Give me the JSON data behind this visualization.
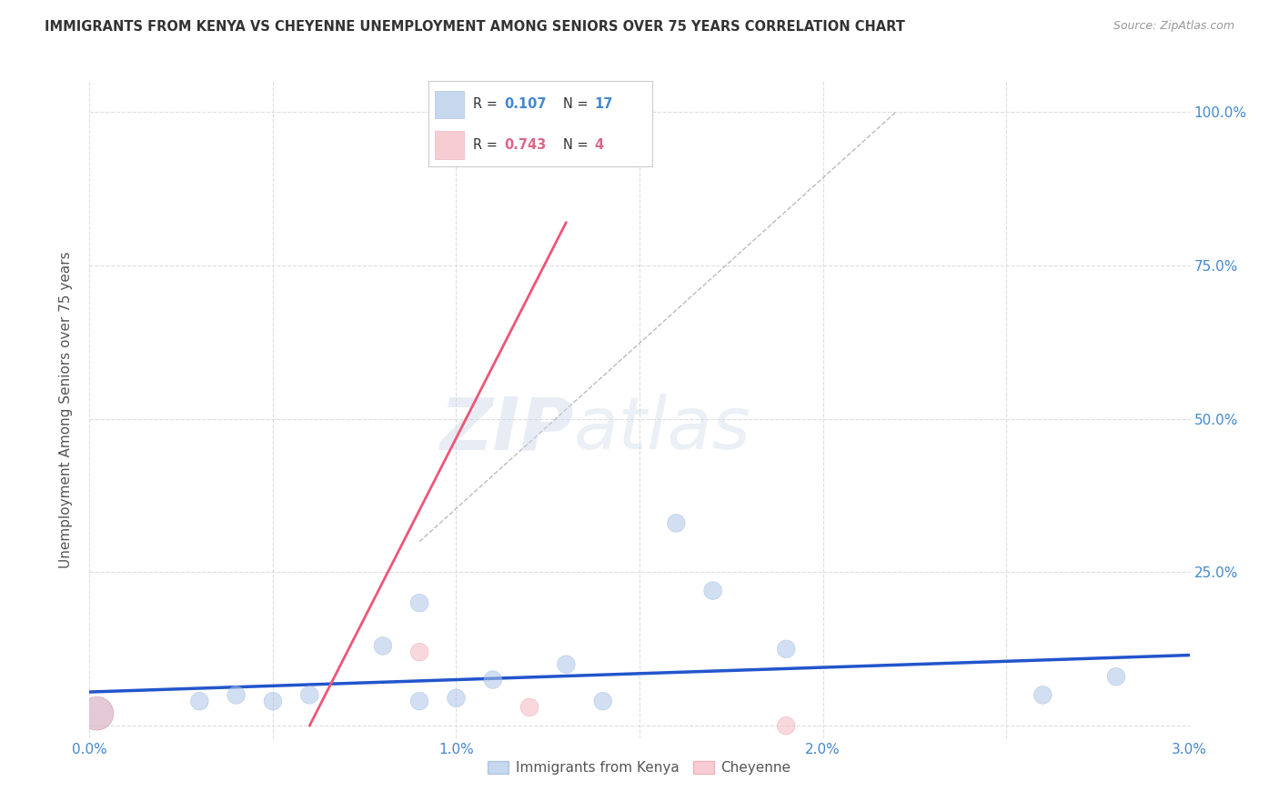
{
  "title": "IMMIGRANTS FROM KENYA VS CHEYENNE UNEMPLOYMENT AMONG SENIORS OVER 75 YEARS CORRELATION CHART",
  "source": "Source: ZipAtlas.com",
  "ylabel": "Unemployment Among Seniors over 75 years",
  "xlim": [
    0.0,
    0.03
  ],
  "ylim": [
    -0.02,
    1.05
  ],
  "plot_ylim": [
    0.0,
    1.0
  ],
  "xticks": [
    0.0,
    0.005,
    0.01,
    0.015,
    0.02,
    0.025,
    0.03
  ],
  "xticklabels": [
    "0.0%",
    "",
    "1.0%",
    "",
    "2.0%",
    "",
    "3.0%"
  ],
  "yticks": [
    0.0,
    0.25,
    0.5,
    0.75,
    1.0
  ],
  "yticklabels": [
    "",
    "25.0%",
    "50.0%",
    "75.0%",
    "100.0%"
  ],
  "legend_items": [
    {
      "label": "Immigrants from Kenya",
      "color": "#aec6e8",
      "R": "0.107",
      "N": "17"
    },
    {
      "label": "Cheyenne",
      "color": "#f4b8c1",
      "R": "0.743",
      "N": "4"
    }
  ],
  "blue_scatter": {
    "x": [
      0.0002,
      0.003,
      0.004,
      0.005,
      0.006,
      0.008,
      0.009,
      0.009,
      0.01,
      0.011,
      0.013,
      0.014,
      0.016,
      0.017,
      0.019,
      0.026,
      0.028
    ],
    "y": [
      0.02,
      0.04,
      0.05,
      0.04,
      0.05,
      0.13,
      0.2,
      0.04,
      0.045,
      0.075,
      0.1,
      0.04,
      0.33,
      0.22,
      0.125,
      0.05,
      0.08
    ],
    "size": [
      700,
      200,
      200,
      200,
      200,
      200,
      200,
      200,
      200,
      200,
      200,
      200,
      200,
      200,
      200,
      200,
      200
    ]
  },
  "pink_scatter": {
    "x": [
      0.0002,
      0.009,
      0.012,
      0.019
    ],
    "y": [
      0.02,
      0.12,
      0.03,
      0.0
    ],
    "size": [
      700,
      200,
      200,
      200
    ]
  },
  "blue_trendline": {
    "x": [
      0.0,
      0.03
    ],
    "y": [
      0.055,
      0.115
    ]
  },
  "pink_trendline": {
    "x": [
      0.006,
      0.013
    ],
    "y": [
      0.0,
      0.82
    ]
  },
  "diag_line": {
    "x": [
      0.009,
      0.022
    ],
    "y": [
      0.3,
      1.0
    ]
  },
  "watermark_zip": "ZIP",
  "watermark_atlas": "atlas",
  "bg_color": "#ffffff",
  "grid_color": "#dddddd",
  "title_color": "#333333",
  "axis_label_color": "#555555",
  "tick_color": "#4488cc",
  "r_color_blue": "#4488cc",
  "r_color_pink": "#dd6688",
  "watermark_color": "#dce8f5"
}
